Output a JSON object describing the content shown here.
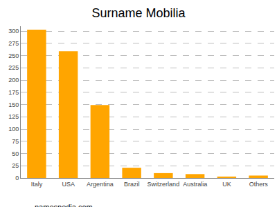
{
  "chart_data": {
    "type": "bar",
    "title": "Surname Mobilia",
    "categories": [
      "Italy",
      "USA",
      "Argentina",
      "Brazil",
      "Switzerland",
      "Australia",
      "UK",
      "Others"
    ],
    "values": [
      303,
      259,
      149,
      21,
      10,
      8,
      3,
      5
    ],
    "color": "#ffa500",
    "ylim": [
      0,
      310
    ],
    "yticks": [
      0,
      25,
      50,
      75,
      100,
      125,
      150,
      175,
      200,
      225,
      250,
      275,
      300
    ],
    "grid": true,
    "annotations": [
      "namespedia.com"
    ]
  }
}
